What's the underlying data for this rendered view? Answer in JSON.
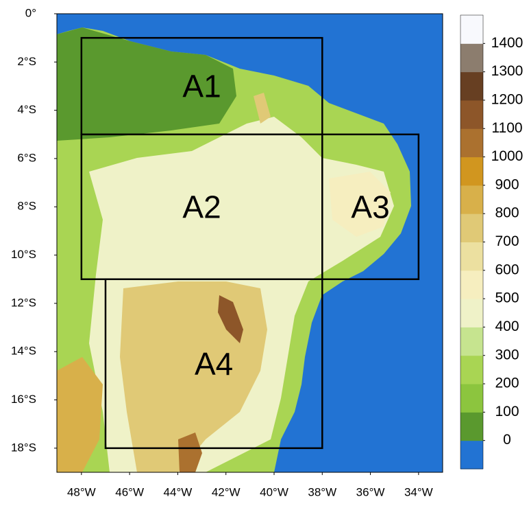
{
  "map": {
    "xlim": [
      -49.02,
      -33.0
    ],
    "ylim": [
      -19,
      0
    ],
    "xticks": [
      {
        "value": -48,
        "label": "48°W"
      },
      {
        "value": -46,
        "label": "46°W"
      },
      {
        "value": -44,
        "label": "44°W"
      },
      {
        "value": -42,
        "label": "42°W"
      },
      {
        "value": -40,
        "label": "40°W"
      },
      {
        "value": -38,
        "label": "38°W"
      },
      {
        "value": -36,
        "label": "36°W"
      },
      {
        "value": -34,
        "label": "34°W"
      }
    ],
    "yticks": [
      {
        "value": 0,
        "label": "0°"
      },
      {
        "value": -2,
        "label": "2°S"
      },
      {
        "value": -4,
        "label": "4°S"
      },
      {
        "value": -6,
        "label": "6°S"
      },
      {
        "value": -8,
        "label": "8°S"
      },
      {
        "value": -10,
        "label": "10°S"
      },
      {
        "value": -12,
        "label": "12°S"
      },
      {
        "value": -14,
        "label": "14°S"
      },
      {
        "value": -16,
        "label": "16°S"
      },
      {
        "value": -18,
        "label": "18°S"
      }
    ],
    "colorbar": {
      "levels": [
        0,
        100,
        200,
        300,
        400,
        500,
        600,
        700,
        800,
        900,
        1000,
        1100,
        1200,
        1300,
        1400
      ],
      "colors": [
        "#2273d3",
        "#5a992e",
        "#8cc53e",
        "#a9d553",
        "#c6e48f",
        "#eff2c8",
        "#f6eebf",
        "#ece0a0",
        "#e0c976",
        "#d8b04a",
        "#d1961f",
        "#ab712f",
        "#8d5629",
        "#673f22",
        "#8c7d6e",
        "#f8f9fd"
      ]
    },
    "regions": [
      {
        "label": "A1",
        "lon": [
          -48,
          -38
        ],
        "lat": [
          -5,
          -1
        ]
      },
      {
        "label": "A2",
        "lon": [
          -48,
          -38
        ],
        "lat": [
          -11,
          -5
        ]
      },
      {
        "label": "A3",
        "lon": [
          -38,
          -34
        ],
        "lat": [
          -11,
          -5
        ]
      },
      {
        "label": "A4",
        "lon": [
          -47,
          -38
        ],
        "lat": [
          -18,
          -11
        ]
      }
    ]
  }
}
